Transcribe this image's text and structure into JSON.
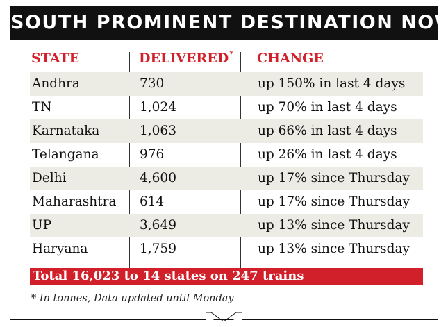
{
  "title": "SOUTH PROMINENT DESTINATION NOW",
  "headers": {
    "state": "STATE",
    "delivered": "DELIVERED",
    "delivered_mark": "*",
    "change": "CHANGE"
  },
  "total": "Total 16,023 to 14 states on 247 trains",
  "footnote": "* In tonnes, Data updated until Monday",
  "colors": {
    "accent": "#d2202a",
    "title_bg": "#111111",
    "row_shade": "#ecebe4"
  },
  "chart_data": {
    "type": "table",
    "columns": [
      "STATE",
      "DELIVERED*",
      "CHANGE"
    ],
    "rows": [
      {
        "state": "Andhra",
        "delivered": "730",
        "change": "up 150% in last 4 days"
      },
      {
        "state": "TN",
        "delivered": "1,024",
        "change": "up 70% in last 4 days"
      },
      {
        "state": "Karnataka",
        "delivered": "1,063",
        "change": "up 66% in last 4 days"
      },
      {
        "state": "Telangana",
        "delivered": "976",
        "change": "up 26% in last 4 days"
      },
      {
        "state": "Delhi",
        "delivered": "4,600",
        "change": "up 17% since Thursday"
      },
      {
        "state": "Maharashtra",
        "delivered": "614",
        "change": "up 17% since Thursday"
      },
      {
        "state": "UP",
        "delivered": "3,649",
        "change": "up 13% since Thursday"
      },
      {
        "state": "Haryana",
        "delivered": "1,759",
        "change": "up 13% since Thursday"
      }
    ]
  }
}
